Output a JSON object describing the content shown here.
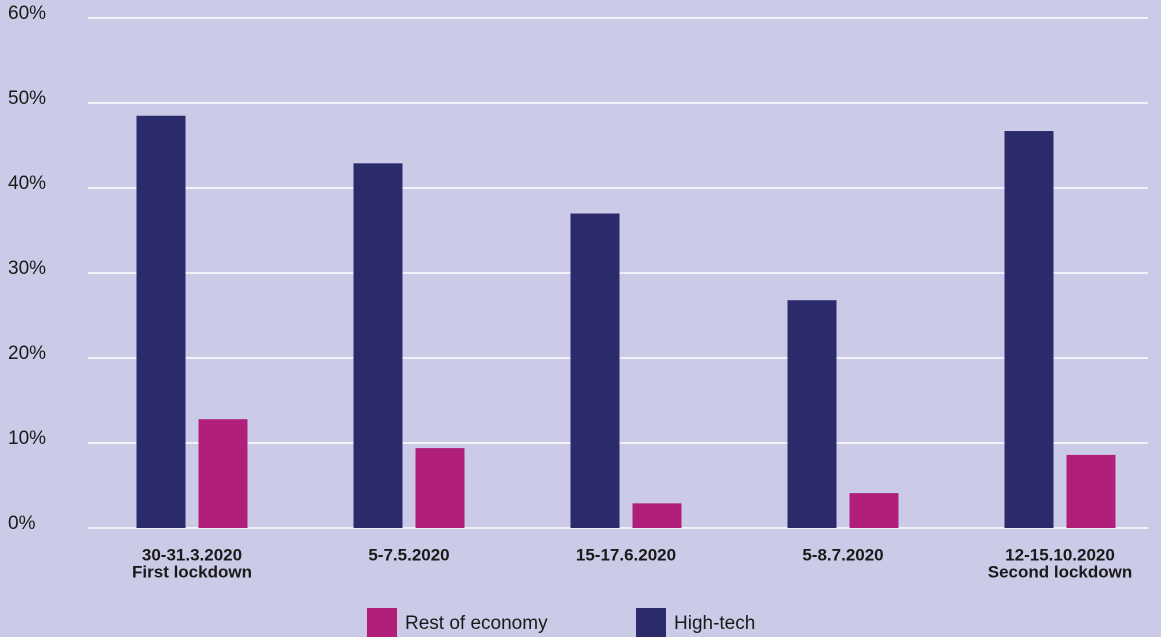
{
  "chart_data": {
    "type": "bar",
    "categories": [
      [
        "30-31.3.2020",
        "First lockdown"
      ],
      [
        "5-7.5.2020"
      ],
      [
        "15-17.6.2020"
      ],
      [
        "5-8.7.2020"
      ],
      [
        "12-15.10.2020",
        "Second lockdown"
      ]
    ],
    "series": [
      {
        "name": "High-tech",
        "color": "#2b2a6b",
        "values": [
          48.5,
          42.9,
          37.0,
          26.8,
          46.7
        ]
      },
      {
        "name": "Rest of economy",
        "color": "#b01f7a",
        "values": [
          12.8,
          9.4,
          2.9,
          4.1,
          8.6
        ]
      }
    ],
    "ylim": [
      0,
      60
    ],
    "yticks": [
      {
        "value": 0,
        "label": "0%"
      },
      {
        "value": 10,
        "label": "10%"
      },
      {
        "value": 20,
        "label": "20%"
      },
      {
        "value": 30,
        "label": "30%"
      },
      {
        "value": 40,
        "label": "40%"
      },
      {
        "value": 50,
        "label": "50%"
      },
      {
        "value": 60,
        "label": "60%"
      }
    ],
    "grid": true,
    "legend": "bottom"
  }
}
